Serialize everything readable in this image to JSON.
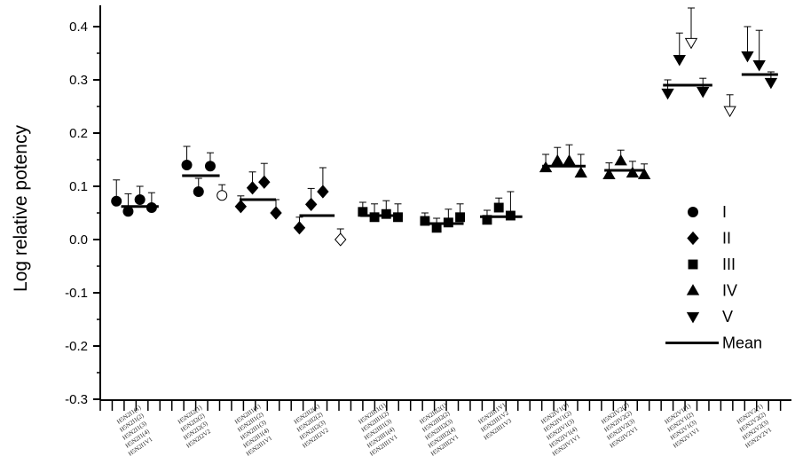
{
  "chart_data": {
    "type": "scatter",
    "ylabel": "Log relative potency",
    "ylim": [
      -0.3,
      0.45
    ],
    "yticks": [
      0.4,
      0.3,
      0.2,
      0.1,
      0.0,
      -0.1,
      -0.2,
      -0.3
    ],
    "ytick_labels": [
      "0.4",
      "0.3",
      "0.2",
      "0.1",
      "0.0",
      "-0.1",
      "-0.2",
      "-0.3"
    ],
    "x_tick_count": 58,
    "legend": [
      {
        "label": "I",
        "marker": "circle"
      },
      {
        "label": "II",
        "marker": "diamond"
      },
      {
        "label": "III",
        "marker": "square"
      },
      {
        "label": "IV",
        "marker": "triangle-up"
      },
      {
        "label": "V",
        "marker": "triangle-down"
      },
      {
        "label": "Mean",
        "marker": "line"
      }
    ],
    "groups": [
      {
        "labels": [
          "H5N2I1(1)",
          "H5N2I1(2)",
          "H5N2I1(3)",
          "H5N2I1(4)",
          "H5N2I1V1"
        ],
        "mean": 0.062,
        "mean_x": [
          1.4,
          4.6
        ],
        "points": [
          {
            "x": 1,
            "y": 0.072,
            "err": 0.04,
            "marker": "circle"
          },
          {
            "x": 2,
            "y": 0.053,
            "err": 0.033,
            "marker": "circle"
          },
          {
            "x": 3,
            "y": 0.075,
            "err": 0.025,
            "marker": "circle"
          },
          {
            "x": 4,
            "y": 0.06,
            "err": 0.028,
            "marker": "circle"
          }
        ]
      },
      {
        "labels": [
          "H5N2I2(1)",
          "H5N2I2(2)",
          "H5N2I2(3)",
          "H5N2I2V2"
        ],
        "mean": 0.12,
        "mean_x": [
          6.6,
          9.8
        ],
        "points": [
          {
            "x": 7,
            "y": 0.14,
            "err": 0.035,
            "marker": "circle"
          },
          {
            "x": 8,
            "y": 0.09,
            "err": 0.025,
            "marker": "circle"
          },
          {
            "x": 9,
            "y": 0.138,
            "err": 0.025,
            "marker": "circle"
          },
          {
            "x": 10,
            "y": 0.083,
            "err": 0.02,
            "marker": "circle-open"
          }
        ]
      },
      {
        "labels": [
          "H5N2II1(1)",
          "H5N2II1(2)",
          "H5N2II1(3)",
          "H5N2II1(4)",
          "H5N2II1V1"
        ],
        "mean": 0.075,
        "mean_x": [
          11.5,
          14.6
        ],
        "points": [
          {
            "x": 11.6,
            "y": 0.062,
            "err": 0.02,
            "marker": "diamond"
          },
          {
            "x": 12.6,
            "y": 0.097,
            "err": 0.03,
            "marker": "diamond"
          },
          {
            "x": 13.6,
            "y": 0.108,
            "err": 0.035,
            "marker": "diamond"
          },
          {
            "x": 14.6,
            "y": 0.05,
            "err": 0.025,
            "marker": "diamond"
          }
        ]
      },
      {
        "labels": [
          "H5N2II2(1)",
          "H5N2II2(2)",
          "H5N2II2(3)",
          "H5N2II2V2"
        ],
        "mean": 0.045,
        "mean_x": [
          16.6,
          19.6
        ],
        "points": [
          {
            "x": 16.6,
            "y": 0.022,
            "err": 0.02,
            "marker": "diamond"
          },
          {
            "x": 17.6,
            "y": 0.066,
            "err": 0.03,
            "marker": "diamond"
          },
          {
            "x": 18.6,
            "y": 0.09,
            "err": 0.045,
            "marker": "diamond"
          },
          {
            "x": 20.1,
            "y": 0.0,
            "err": 0.02,
            "marker": "diamond-open"
          }
        ]
      },
      {
        "labels": [
          "H5N2III1(1)",
          "H5N2III1(2)",
          "H5N2III1(3)",
          "H5N2III1(4)",
          "H5N2III1V1"
        ],
        "mean": 0.045,
        "mean_x": [
          21.8,
          25.4
        ],
        "points": [
          {
            "x": 22.0,
            "y": 0.052,
            "err": 0.018,
            "marker": "square"
          },
          {
            "x": 23.0,
            "y": 0.042,
            "err": 0.025,
            "marker": "square"
          },
          {
            "x": 24.0,
            "y": 0.048,
            "err": 0.025,
            "marker": "square"
          },
          {
            "x": 25.0,
            "y": 0.042,
            "err": 0.025,
            "marker": "square"
          }
        ]
      },
      {
        "labels": [
          "H5N2III2(1)",
          "H5N2III2(2)",
          "H5N2III2(3)",
          "H5N2III2(4)",
          "H5N2III2V1"
        ],
        "mean": 0.03,
        "mean_x": [
          27.0,
          30.6
        ],
        "points": [
          {
            "x": 27.3,
            "y": 0.035,
            "err": 0.015,
            "marker": "square"
          },
          {
            "x": 28.3,
            "y": 0.022,
            "err": 0.018,
            "marker": "square"
          },
          {
            "x": 29.3,
            "y": 0.032,
            "err": 0.025,
            "marker": "square"
          },
          {
            "x": 30.3,
            "y": 0.042,
            "err": 0.025,
            "marker": "square"
          }
        ]
      },
      {
        "labels": [
          "H5N2III1V1",
          "H5N2III1V2",
          "H5N2III1V3"
        ],
        "mean": 0.043,
        "mean_x": [
          32.0,
          35.6
        ],
        "points": [
          {
            "x": 32.6,
            "y": 0.037,
            "err": 0.018,
            "marker": "square"
          },
          {
            "x": 33.6,
            "y": 0.06,
            "err": 0.018,
            "marker": "square"
          },
          {
            "x": 34.6,
            "y": 0.045,
            "err": 0.045,
            "marker": "square"
          }
        ]
      },
      {
        "labels": [
          "H5N2IV1(1)",
          "H5N2IV1(2)",
          "H5N2IV1(3)",
          "H5N2IV1(4)",
          "H5N2IV1V1"
        ],
        "mean": 0.138,
        "mean_x": [
          37.3,
          41.0
        ],
        "points": [
          {
            "x": 37.6,
            "y": 0.135,
            "err": 0.025,
            "marker": "triangle-up"
          },
          {
            "x": 38.6,
            "y": 0.148,
            "err": 0.025,
            "marker": "triangle-up"
          },
          {
            "x": 39.6,
            "y": 0.148,
            "err": 0.03,
            "marker": "triangle-up"
          },
          {
            "x": 40.6,
            "y": 0.125,
            "err": 0.035,
            "marker": "triangle-up"
          }
        ]
      },
      {
        "labels": [
          "H5N2IV2(1)",
          "H5N2IV2(2)",
          "H5N2IV2(3)",
          "H5N2IV2V1"
        ],
        "mean": 0.13,
        "mean_x": [
          42.6,
          46.0
        ],
        "points": [
          {
            "x": 43.0,
            "y": 0.122,
            "err": 0.022,
            "marker": "triangle-up"
          },
          {
            "x": 44.0,
            "y": 0.148,
            "err": 0.02,
            "marker": "triangle-up"
          },
          {
            "x": 45.0,
            "y": 0.125,
            "err": 0.022,
            "marker": "triangle-up"
          },
          {
            "x": 46.0,
            "y": 0.122,
            "err": 0.02,
            "marker": "triangle-up"
          }
        ]
      },
      {
        "labels": [
          "H5N2V1(1)",
          "H5N2V1(2)",
          "H5N2V1(3)",
          "H5N2V1V1"
        ],
        "mean": 0.29,
        "mean_x": [
          47.6,
          51.8
        ],
        "points": [
          {
            "x": 48.0,
            "y": 0.275,
            "err": 0.025,
            "marker": "triangle-down"
          },
          {
            "x": 49.0,
            "y": 0.338,
            "err": 0.05,
            "marker": "triangle-down"
          },
          {
            "x": 50.0,
            "y": 0.37,
            "err": 0.065,
            "marker": "triangle-down-open"
          },
          {
            "x": 51.0,
            "y": 0.278,
            "err": 0.025,
            "marker": "triangle-down"
          }
        ]
      },
      {
        "labels": [
          "H5N2V2(1)",
          "H5N2V2(2)",
          "H5N2V2(3)",
          "H5N2V2V1"
        ],
        "mean": 0.31,
        "mean_x": [
          54.3,
          57.4
        ],
        "points": [
          {
            "x": 53.3,
            "y": 0.242,
            "err": 0.03,
            "marker": "triangle-down-open"
          },
          {
            "x": 54.8,
            "y": 0.345,
            "err": 0.055,
            "marker": "triangle-down"
          },
          {
            "x": 55.8,
            "y": 0.328,
            "err": 0.065,
            "marker": "triangle-down"
          },
          {
            "x": 56.8,
            "y": 0.295,
            "err": 0.02,
            "marker": "triangle-down"
          }
        ]
      }
    ]
  }
}
